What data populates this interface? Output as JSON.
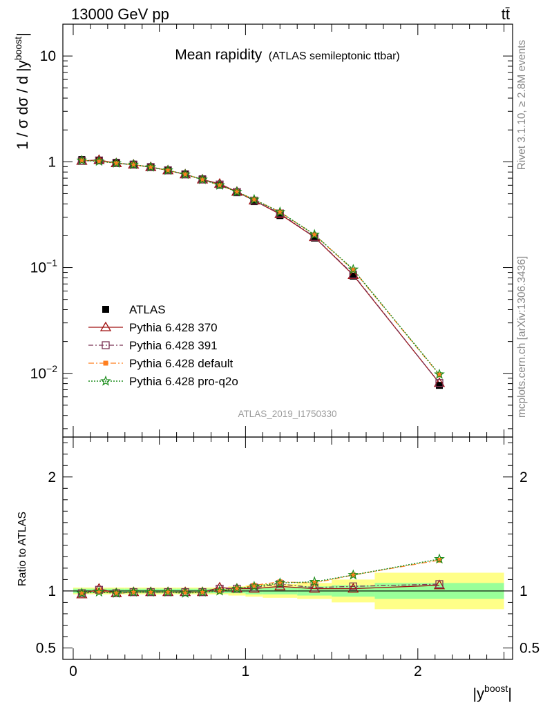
{
  "header": {
    "energy_label": "13000 GeV pp",
    "process_label": "tt̄"
  },
  "side_labels": {
    "rivet": "Rivet 3.1.10, ≥ 2.8M events",
    "mcplots": "mcplots.cern.ch [arXiv:1306.3436]"
  },
  "colors": {
    "atlas": "#000000",
    "p370": "#a01010",
    "p391": "#7a3355",
    "pdefault": "#ff7f1f",
    "pq2o": "#1a8c1a",
    "band_inner": "#99ff99",
    "band_outer": "#ffff88"
  },
  "chart_data": [
    {
      "type": "line",
      "title": "Mean rapidity",
      "subtitle": "(ATLAS semileptonic ttbar)",
      "analysis_id": "ATLAS_2019_I1750330",
      "ylabel": "1 / σ dσ / d |y",
      "ylabel_sup": "boost",
      "ylabel_end": "|",
      "yscale": "log",
      "ylim": [
        0.0025,
        20
      ],
      "xlim": [
        -0.06,
        2.55
      ],
      "y_ticks": [
        {
          "v": 10,
          "m": "10",
          "e": ""
        },
        {
          "v": 1,
          "m": "1",
          "e": ""
        },
        {
          "v": 0.1,
          "m": "10",
          "e": "−1"
        },
        {
          "v": 0.01,
          "m": "10",
          "e": "−2"
        }
      ],
      "x": [
        0.05,
        0.15,
        0.25,
        0.35,
        0.45,
        0.55,
        0.65,
        0.75,
        0.85,
        0.95,
        1.05,
        1.2,
        1.4,
        1.625,
        2.125
      ],
      "series": [
        {
          "name": "ATLAS",
          "marker": "filled-square",
          "values": [
            1.05,
            1.02,
            0.99,
            0.95,
            0.9,
            0.84,
            0.77,
            0.69,
            0.6,
            0.51,
            0.42,
            0.31,
            0.19,
            0.083,
            0.0077
          ]
        },
        {
          "name": "Pythia 6.428 370",
          "marker": "open-triangle",
          "values": [
            1.02,
            1.04,
            0.97,
            0.94,
            0.89,
            0.83,
            0.76,
            0.68,
            0.62,
            0.52,
            0.43,
            0.32,
            0.194,
            0.085,
            0.0081
          ]
        },
        {
          "name": "Pythia 6.428 391",
          "marker": "open-square",
          "values": [
            1.02,
            1.03,
            0.97,
            0.94,
            0.89,
            0.83,
            0.76,
            0.68,
            0.61,
            0.52,
            0.43,
            0.325,
            0.195,
            0.086,
            0.0081
          ]
        },
        {
          "name": "Pythia 6.428 default",
          "marker": "filled-small-square",
          "values": [
            1.03,
            1.02,
            0.97,
            0.94,
            0.89,
            0.83,
            0.76,
            0.68,
            0.6,
            0.52,
            0.44,
            0.335,
            0.204,
            0.095,
            0.0097
          ]
        },
        {
          "name": "Pythia 6.428 pro-q2o",
          "marker": "star",
          "values": [
            1.03,
            1.01,
            0.97,
            0.94,
            0.89,
            0.83,
            0.76,
            0.68,
            0.6,
            0.52,
            0.44,
            0.335,
            0.205,
            0.096,
            0.0098
          ]
        }
      ]
    },
    {
      "type": "line",
      "ylabel": "Ratio to ATLAS",
      "xlabel": "|y",
      "xlabel_sup": "boost",
      "xlabel_end": "|",
      "ylim": [
        0.4,
        2.35
      ],
      "xlim": [
        -0.06,
        2.55
      ],
      "y_ticks": [
        0.5,
        1,
        2
      ],
      "y_tick_labels": [
        "0.5",
        "1",
        "2"
      ],
      "x_ticks": [
        0,
        1,
        2
      ],
      "x_tick_labels": [
        "0",
        "1",
        "2"
      ],
      "bins": [
        [
          0,
          0.1
        ],
        [
          0.1,
          0.2
        ],
        [
          0.2,
          0.3
        ],
        [
          0.3,
          0.4
        ],
        [
          0.4,
          0.5
        ],
        [
          0.5,
          0.6
        ],
        [
          0.6,
          0.7
        ],
        [
          0.7,
          0.8
        ],
        [
          0.8,
          0.9
        ],
        [
          0.9,
          1.0
        ],
        [
          1.0,
          1.1
        ],
        [
          1.1,
          1.3
        ],
        [
          1.3,
          1.5
        ],
        [
          1.5,
          1.75
        ],
        [
          1.75,
          2.5
        ]
      ],
      "band_inner": [
        0.02,
        0.02,
        0.02,
        0.02,
        0.02,
        0.02,
        0.02,
        0.02,
        0.02,
        0.02,
        0.03,
        0.03,
        0.04,
        0.05,
        0.07
      ],
      "band_outer": [
        0.03,
        0.03,
        0.03,
        0.03,
        0.03,
        0.03,
        0.03,
        0.03,
        0.03,
        0.04,
        0.05,
        0.06,
        0.07,
        0.1,
        0.16
      ],
      "reference": 1,
      "x": [
        0.05,
        0.15,
        0.25,
        0.35,
        0.45,
        0.55,
        0.65,
        0.75,
        0.85,
        0.95,
        1.05,
        1.2,
        1.4,
        1.625,
        2.125
      ],
      "series": [
        {
          "name": "Pythia 6.428 370",
          "marker": "open-triangle",
          "values": [
            0.97,
            1.02,
            0.98,
            0.99,
            0.99,
            0.99,
            0.99,
            0.99,
            1.03,
            1.02,
            1.02,
            1.04,
            1.02,
            1.02,
            1.05
          ]
        },
        {
          "name": "Pythia 6.428 391",
          "marker": "open-square",
          "values": [
            0.98,
            1.01,
            0.98,
            0.99,
            0.99,
            0.99,
            0.99,
            0.99,
            1.02,
            1.02,
            1.03,
            1.06,
            1.03,
            1.04,
            1.06
          ]
        },
        {
          "name": "Pythia 6.428 default",
          "marker": "filled-small-square",
          "values": [
            0.98,
            1.0,
            0.98,
            0.99,
            0.99,
            0.99,
            0.99,
            0.99,
            1.0,
            1.02,
            1.05,
            1.08,
            1.07,
            1.14,
            1.27
          ]
        },
        {
          "name": "Pythia 6.428 pro-q2o",
          "marker": "star",
          "values": [
            0.98,
            0.99,
            0.98,
            0.99,
            0.99,
            0.99,
            0.98,
            0.99,
            1.0,
            1.02,
            1.04,
            1.07,
            1.08,
            1.14,
            1.28
          ]
        }
      ]
    }
  ]
}
